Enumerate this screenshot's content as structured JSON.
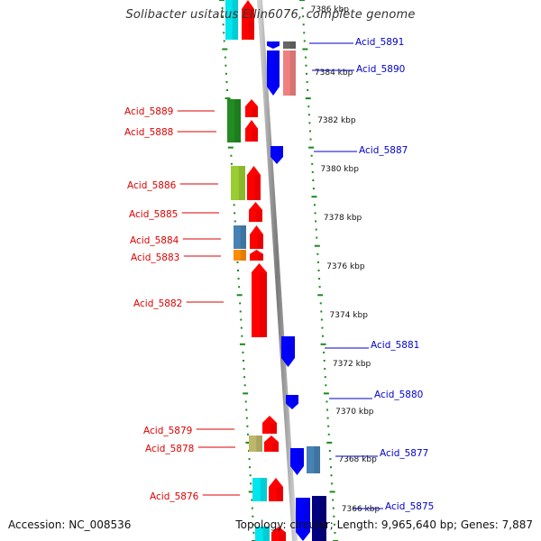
{
  "title": "Solibacter usitatus Ellin6076, complete genome",
  "footer": {
    "accession": "Accession: NC_008536",
    "topology": "Topology: circular; Length: 9,965,640 bp; Genes: 7,887"
  },
  "colors": {
    "forward_label": "#dd0000",
    "reverse_label": "#0000cc",
    "tick_dots": "#1a8a1a",
    "genome_line": "#8a8a8a",
    "background": "#ffffff"
  },
  "scale_labels": [
    "7366 kbp",
    "7368 kbp",
    "7370 kbp",
    "7372 kbp",
    "7374 kbp",
    "7376 kbp",
    "7378 kbp",
    "7380 kbp",
    "7382 kbp",
    "7384 kbp",
    "7386 kbp"
  ],
  "forward_genes": [
    {
      "label": "Acid_5889",
      "color": "#228b22"
    },
    {
      "label": "Acid_5888",
      "color": "#228b22"
    },
    {
      "label": "Acid_5886",
      "color": "#9acd32"
    },
    {
      "label": "Acid_5885",
      "color": "#ff0000"
    },
    {
      "label": "Acid_5884",
      "color": "#4682b4"
    },
    {
      "label": "Acid_5883",
      "color": "#ff8c00"
    },
    {
      "label": "Acid_5882",
      "color": "#ff0000"
    },
    {
      "label": "Acid_5879",
      "color": "#ff0000"
    },
    {
      "label": "Acid_5878",
      "color": "#bdb76b"
    },
    {
      "label": "Acid_5876",
      "color": "#00e5ee"
    }
  ],
  "reverse_genes": [
    {
      "label": "Acid_5891",
      "color": "#0000ff"
    },
    {
      "label": "Acid_5890",
      "color": "#0000ff"
    },
    {
      "label": "Acid_5887",
      "color": "#0000ff"
    },
    {
      "label": "Acid_5881",
      "color": "#0000ff"
    },
    {
      "label": "Acid_5880",
      "color": "#0000ff"
    },
    {
      "label": "Acid_5877",
      "color": "#0000ff"
    },
    {
      "label": "Acid_5875",
      "color": "#0000cc"
    }
  ]
}
